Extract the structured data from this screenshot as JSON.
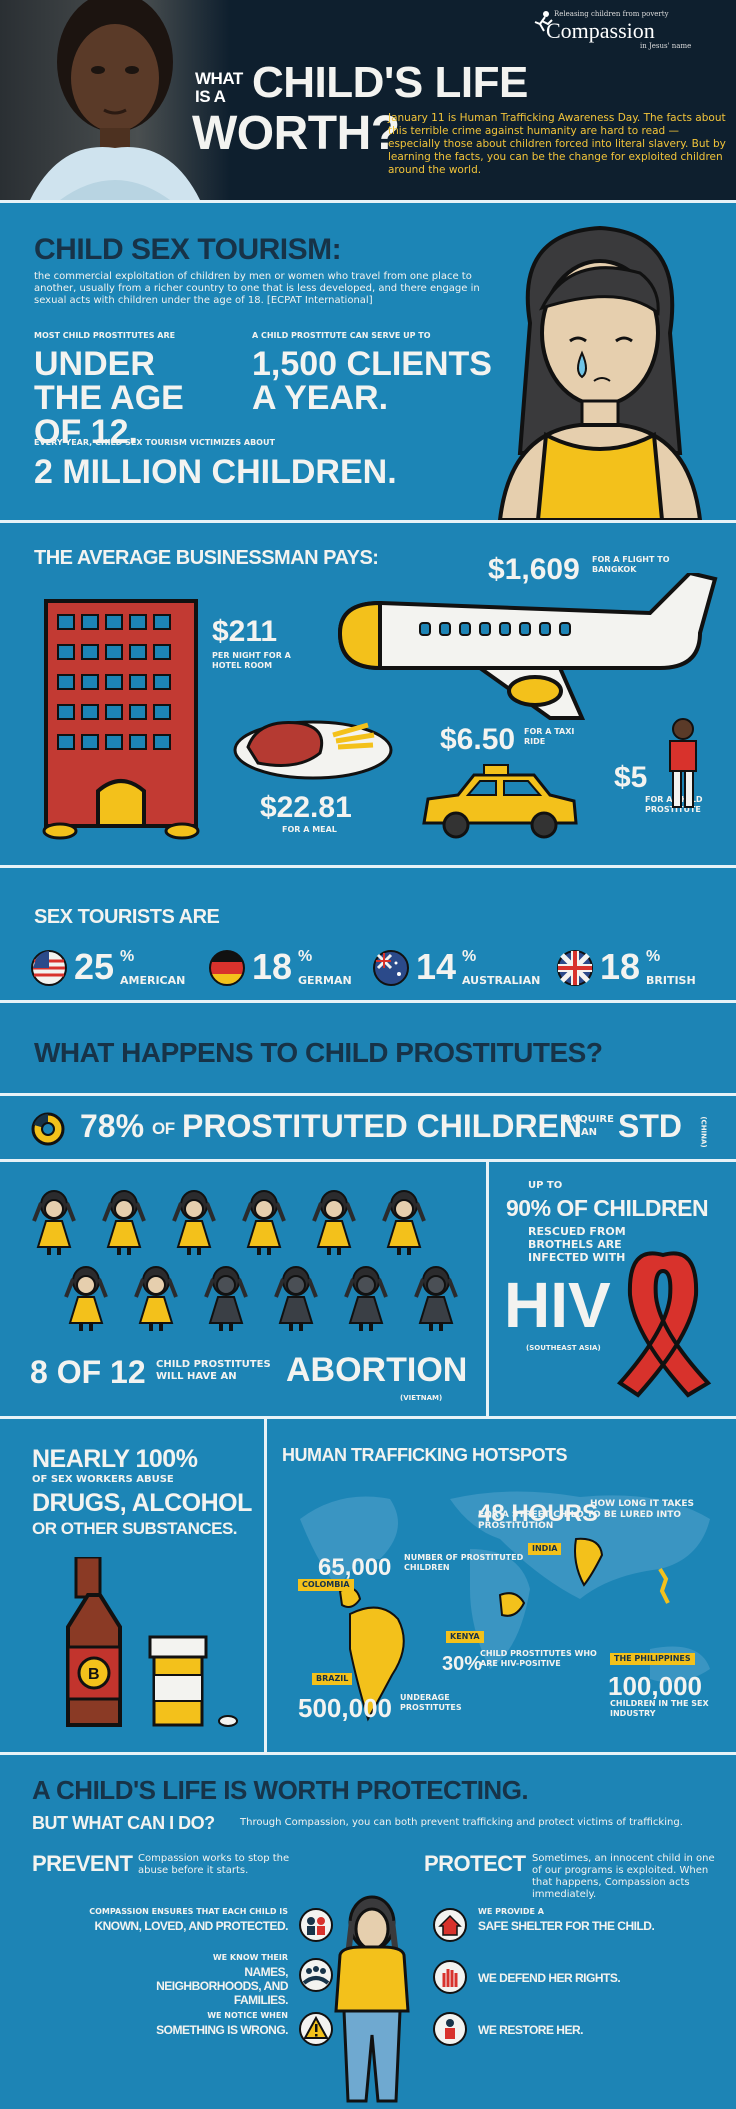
{
  "header": {
    "title_what_is_a": "WHAT IS A",
    "title_main": "CHILD'S LIFE",
    "title_worth": "WORTH?",
    "logo_tagline": "Releasing children from poverty",
    "logo_name": "Compassion",
    "logo_sub": "in Jesus' name",
    "intro": "January 11 is Human Trafficking Awareness Day. The facts about this terrible crime against humanity are hard to read — especially those about children forced into literal slavery. But by learning the facts, you can be the change for exploited children around the world."
  },
  "tourism": {
    "title": "CHILD SEX TOURISM:",
    "definition": "the commercial exploitation of children by men or women who travel from one place to another, usually from a richer country to one that is less developed, and there engage in sexual acts with children under the age of 18. [ECPAT International]",
    "stat1_label": "MOST CHILD PROSTITUTES ARE",
    "stat1_value": "UNDER THE AGE OF 12.",
    "stat2_label": "A CHILD PROSTITUTE CAN SERVE UP TO",
    "stat2_value": "1,500 CLIENTS A YEAR.",
    "stat3_label": "EVERY YEAR, CHILD SEX TOURISM VICTIMIZES ABOUT",
    "stat3_value": "2 MILLION CHILDREN."
  },
  "businessman": {
    "title": "THE AVERAGE BUSINESSMAN PAYS:",
    "flight_value": "$1,609",
    "flight_label": "FOR A FLIGHT TO BANGKOK",
    "hotel_value": "$211",
    "hotel_label": "PER NIGHT FOR A HOTEL ROOM",
    "meal_value": "$22.81",
    "meal_label": "FOR A MEAL",
    "taxi_value": "$6.50",
    "taxi_label": "FOR A TAXI RIDE",
    "child_value": "$5",
    "child_label": "FOR A CHILD PROSTITUTE"
  },
  "tourists": {
    "title": "SEX TOURISTS ARE",
    "items": [
      {
        "pct": "25",
        "sym": "%",
        "label": "AMERICAN"
      },
      {
        "pct": "18",
        "sym": "%",
        "label": "GERMAN"
      },
      {
        "pct": "14",
        "sym": "%",
        "label": "AUSTRALIAN"
      },
      {
        "pct": "18",
        "sym": "%",
        "label": "BRITISH"
      }
    ]
  },
  "happens": {
    "title": "WHAT HAPPENS TO CHILD PROSTITUTES?",
    "std_pct": "78%",
    "std_of": "OF",
    "std_main": "PROSTITUTED CHILDREN",
    "std_acquire": "ACQUIRE AN",
    "std_std": "STD",
    "std_source": "(CHINA)",
    "abortion_count": "8 OF 12",
    "abortion_label": "CHILD PROSTITUTES WILL HAVE AN",
    "abortion_word": "ABORTION",
    "abortion_source": "(VIETNAM)",
    "abortion_fraction": 0.667,
    "hiv_upto": "UP TO",
    "hiv_pct": "90% OF CHILDREN",
    "hiv_label": "RESCUED FROM BROTHELS ARE INFECTED WITH",
    "hiv_word": "HIV",
    "hiv_source": "(SOUTHEAST ASIA)"
  },
  "substances": {
    "nearly": "NEARLY 100%",
    "label": "OF SEX WORKERS ABUSE",
    "main": "DRUGS, ALCOHOL",
    "other": "OR OTHER SUBSTANCES."
  },
  "hotspots": {
    "title": "HUMAN TRAFFICKING HOTSPOTS",
    "hours_value": "48 HOURS",
    "hours_label": "HOW LONG IT TAKES FOR A STREET CHILD TO BE LURED INTO PROSTITUTION",
    "colombia_value": "65,000",
    "colombia_label": "NUMBER OF PROSTITUTED CHILDREN",
    "colombia": "COLOMBIA",
    "india": "INDIA",
    "kenya": "KENYA",
    "kenya_value": "30%",
    "kenya_label": "CHILD PROSTITUTES WHO ARE HIV-POSITIVE",
    "brazil": "BRAZIL",
    "brazil_value": "500,000",
    "brazil_label": "UNDERAGE PROSTITUTES",
    "philippines": "THE PHILIPPINES",
    "philippines_value": "100,000",
    "philippines_label": "CHILDREN IN THE SEX INDUSTRY"
  },
  "protect": {
    "title": "A CHILD'S LIFE IS WORTH PROTECTING.",
    "subtitle": "BUT WHAT CAN I DO?",
    "subtitle_text": "Through Compassion, you can both prevent trafficking and protect victims of trafficking.",
    "prevent_title": "PREVENT",
    "prevent_text": "Compassion works to stop the abuse before it starts.",
    "protect_title": "PROTECT",
    "protect_text": "Sometimes, an innocent child in one of our programs is exploited. When that happens, Compassion acts immediately.",
    "left_items": [
      {
        "small": "COMPASSION ENSURES THAT EACH CHILD IS",
        "big": "KNOWN, LOVED, AND PROTECTED."
      },
      {
        "small": "WE KNOW THEIR",
        "big": "NAMES, NEIGHBORHOODS, AND FAMILIES."
      },
      {
        "small": "WE NOTICE WHEN",
        "big": "SOMETHING IS WRONG."
      }
    ],
    "right_items": [
      {
        "small": "WE PROVIDE A",
        "big": "SAFE SHELTER FOR THE CHILD."
      },
      {
        "small": "",
        "big": "WE DEFEND HER RIGHTS."
      },
      {
        "small": "",
        "big": "WE RESTORE HER."
      }
    ]
  },
  "colors": {
    "blue": "#1d84b5",
    "navy": "#173348",
    "yellow": "#f3c11b",
    "red": "#d8322c",
    "cream": "#f3f3f0"
  }
}
